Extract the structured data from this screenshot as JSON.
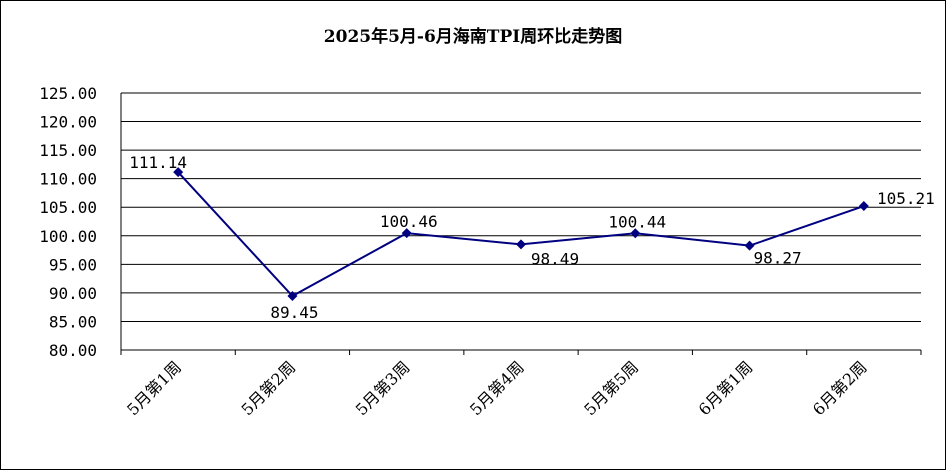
{
  "chart_data": {
    "type": "line",
    "title": "2025年5月-6月海南TPI周环比走势图",
    "categories": [
      "5月第1周",
      "5月第2周",
      "5月第3周",
      "5月第4周",
      "5月第5周",
      "6月第1周",
      "6月第2周"
    ],
    "series": [
      {
        "values": [
          111.14,
          89.45,
          100.46,
          98.49,
          100.44,
          98.27,
          105.21
        ],
        "data_labels": [
          "111.14",
          "89.45",
          "100.46",
          "98.49",
          "100.44",
          "98.27",
          "105.21"
        ],
        "color": "#000080"
      }
    ],
    "yticks": [
      "80.00",
      "85.00",
      "90.00",
      "95.00",
      "100.00",
      "105.00",
      "110.00",
      "115.00",
      "120.00",
      "125.00"
    ],
    "ylim": [
      80,
      125
    ],
    "grid": true,
    "legend": "none",
    "xlabel": "",
    "ylabel": ""
  }
}
